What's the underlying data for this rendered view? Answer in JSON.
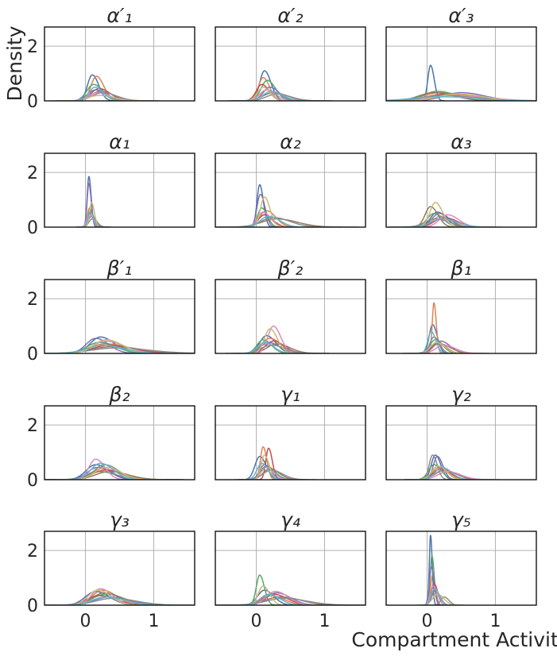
{
  "figure": {
    "ylabel": "Density",
    "xlabel": "Compartment Activity"
  },
  "colors": {
    "series": [
      "#4c72b0",
      "#dd8452",
      "#55a868",
      "#c44e52",
      "#8172b3",
      "#937860",
      "#da8bc3",
      "#8c8c8c",
      "#ccb974",
      "#64b5cd"
    ],
    "grid": "#b0b0b0",
    "frame": "#000000",
    "text": "#262626"
  },
  "chart_data": [
    {
      "type": "line",
      "title": "α′₁",
      "xlim": [
        -0.6,
        1.6
      ],
      "ylim": [
        0,
        2.7
      ],
      "xticks": [
        0,
        1
      ],
      "yticks": [
        0,
        2
      ],
      "series": [
        {
          "peak_x": 0.1,
          "peak_y": 0.95,
          "width": 0.07
        },
        {
          "peak_x": 0.16,
          "peak_y": 0.9,
          "width": 0.08
        },
        {
          "peak_x": 0.12,
          "peak_y": 0.6,
          "width": 0.1
        },
        {
          "peak_x": 0.2,
          "peak_y": 0.45,
          "width": 0.12
        },
        {
          "peak_x": 0.15,
          "peak_y": 0.4,
          "width": 0.12
        },
        {
          "peak_x": 0.22,
          "peak_y": 0.35,
          "width": 0.14
        },
        {
          "peak_x": 0.18,
          "peak_y": 0.3,
          "width": 0.13
        },
        {
          "peak_x": 0.25,
          "peak_y": 0.3,
          "width": 0.15
        },
        {
          "peak_x": 0.2,
          "peak_y": 0.2,
          "width": 0.16
        },
        {
          "peak_x": 0.14,
          "peak_y": 0.5,
          "width": 0.09
        }
      ]
    },
    {
      "type": "line",
      "title": "α′₂",
      "xlim": [
        -0.6,
        1.6
      ],
      "ylim": [
        0,
        2.7
      ],
      "xticks": [
        0,
        1
      ],
      "yticks": [
        0,
        2
      ],
      "series": [
        {
          "peak_x": 0.12,
          "peak_y": 1.1,
          "width": 0.07
        },
        {
          "peak_x": 0.1,
          "peak_y": 0.85,
          "width": 0.07
        },
        {
          "peak_x": 0.16,
          "peak_y": 0.75,
          "width": 0.09
        },
        {
          "peak_x": 0.08,
          "peak_y": 0.6,
          "width": 0.08
        },
        {
          "peak_x": 0.2,
          "peak_y": 0.5,
          "width": 0.1
        },
        {
          "peak_x": 0.25,
          "peak_y": 0.3,
          "width": 0.15
        },
        {
          "peak_x": 0.15,
          "peak_y": 0.4,
          "width": 0.1
        },
        {
          "peak_x": 0.3,
          "peak_y": 0.25,
          "width": 0.15
        },
        {
          "peak_x": 0.1,
          "peak_y": 0.5,
          "width": 0.08
        },
        {
          "peak_x": 0.22,
          "peak_y": 0.35,
          "width": 0.12
        }
      ]
    },
    {
      "type": "line",
      "title": "α′₃",
      "xlim": [
        -0.6,
        1.6
      ],
      "ylim": [
        0,
        2.7
      ],
      "xticks": [
        0,
        1
      ],
      "yticks": [
        0,
        2
      ],
      "series": [
        {
          "peak_x": 0.05,
          "peak_y": 1.3,
          "width": 0.04
        },
        {
          "peak_x": 0.2,
          "peak_y": 0.3,
          "width": 0.25
        },
        {
          "peak_x": 0.15,
          "peak_y": 0.35,
          "width": 0.2
        },
        {
          "peak_x": 0.3,
          "peak_y": 0.25,
          "width": 0.3
        },
        {
          "peak_x": 0.5,
          "peak_y": 0.3,
          "width": 0.25
        },
        {
          "peak_x": 0.1,
          "peak_y": 0.3,
          "width": 0.22
        },
        {
          "peak_x": 0.4,
          "peak_y": 0.2,
          "width": 0.35
        },
        {
          "peak_x": 0.25,
          "peak_y": 0.2,
          "width": 0.3
        },
        {
          "peak_x": 0.45,
          "peak_y": 0.25,
          "width": 0.28
        },
        {
          "peak_x": 0.2,
          "peak_y": 0.15,
          "width": 0.4
        }
      ]
    },
    {
      "type": "line",
      "title": "α₁",
      "xlim": [
        -0.6,
        1.6
      ],
      "ylim": [
        0,
        2.7
      ],
      "xticks": [
        0,
        1
      ],
      "yticks": [
        0,
        2
      ],
      "series": [
        {
          "peak_x": 0.05,
          "peak_y": 1.85,
          "width": 0.025
        },
        {
          "peak_x": 0.06,
          "peak_y": 0.7,
          "width": 0.03
        },
        {
          "peak_x": 0.07,
          "peak_y": 0.6,
          "width": 0.035
        },
        {
          "peak_x": 0.08,
          "peak_y": 0.5,
          "width": 0.04
        },
        {
          "peak_x": 0.05,
          "peak_y": 1.6,
          "width": 0.025
        },
        {
          "peak_x": 0.09,
          "peak_y": 0.4,
          "width": 0.05
        },
        {
          "peak_x": 0.06,
          "peak_y": 0.45,
          "width": 0.04
        },
        {
          "peak_x": 0.1,
          "peak_y": 0.3,
          "width": 0.05
        },
        {
          "peak_x": 0.09,
          "peak_y": 0.9,
          "width": 0.03
        },
        {
          "peak_x": 0.07,
          "peak_y": 0.55,
          "width": 0.035
        }
      ]
    },
    {
      "type": "line",
      "title": "α₂",
      "xlim": [
        -0.6,
        1.6
      ],
      "ylim": [
        0,
        2.7
      ],
      "xticks": [
        0,
        1
      ],
      "yticks": [
        0,
        2
      ],
      "series": [
        {
          "peak_x": 0.05,
          "peak_y": 1.55,
          "width": 0.04
        },
        {
          "peak_x": 0.15,
          "peak_y": 0.6,
          "width": 0.1
        },
        {
          "peak_x": 0.08,
          "peak_y": 0.7,
          "width": 0.06
        },
        {
          "peak_x": 0.12,
          "peak_y": 0.45,
          "width": 0.09
        },
        {
          "peak_x": 0.06,
          "peak_y": 1.2,
          "width": 0.05
        },
        {
          "peak_x": 0.3,
          "peak_y": 0.3,
          "width": 0.22
        },
        {
          "peak_x": 0.1,
          "peak_y": 0.55,
          "width": 0.08
        },
        {
          "peak_x": 0.25,
          "peak_y": 0.35,
          "width": 0.18
        },
        {
          "peak_x": 0.12,
          "peak_y": 1.1,
          "width": 0.06
        },
        {
          "peak_x": 0.18,
          "peak_y": 0.4,
          "width": 0.12
        }
      ]
    },
    {
      "type": "line",
      "title": "α₃",
      "xlim": [
        -0.6,
        1.6
      ],
      "ylim": [
        0,
        2.7
      ],
      "xticks": [
        0,
        1
      ],
      "yticks": [
        0,
        2
      ],
      "series": [
        {
          "peak_x": 0.15,
          "peak_y": 0.55,
          "width": 0.1
        },
        {
          "peak_x": 0.2,
          "peak_y": 0.4,
          "width": 0.12
        },
        {
          "peak_x": 0.1,
          "peak_y": 0.5,
          "width": 0.1
        },
        {
          "peak_x": 0.25,
          "peak_y": 0.35,
          "width": 0.14
        },
        {
          "peak_x": 0.18,
          "peak_y": 0.5,
          "width": 0.11
        },
        {
          "peak_x": 0.05,
          "peak_y": 0.75,
          "width": 0.08
        },
        {
          "peak_x": 0.3,
          "peak_y": 0.45,
          "width": 0.12
        },
        {
          "peak_x": 0.12,
          "peak_y": 0.3,
          "width": 0.15
        },
        {
          "peak_x": 0.12,
          "peak_y": 0.9,
          "width": 0.08
        },
        {
          "peak_x": 0.22,
          "peak_y": 0.3,
          "width": 0.16
        }
      ]
    },
    {
      "type": "line",
      "title": "β′₁",
      "xlim": [
        -0.6,
        1.6
      ],
      "ylim": [
        0,
        2.7
      ],
      "xticks": [
        0,
        1
      ],
      "yticks": [
        0,
        2
      ],
      "series": [
        {
          "peak_x": 0.22,
          "peak_y": 0.6,
          "width": 0.15
        },
        {
          "peak_x": 0.3,
          "peak_y": 0.35,
          "width": 0.25
        },
        {
          "peak_x": 0.2,
          "peak_y": 0.4,
          "width": 0.18
        },
        {
          "peak_x": 0.35,
          "peak_y": 0.3,
          "width": 0.25
        },
        {
          "peak_x": 0.15,
          "peak_y": 0.55,
          "width": 0.14
        },
        {
          "peak_x": 0.4,
          "peak_y": 0.25,
          "width": 0.3
        },
        {
          "peak_x": 0.3,
          "peak_y": 0.45,
          "width": 0.2
        },
        {
          "peak_x": 0.45,
          "peak_y": 0.2,
          "width": 0.35
        },
        {
          "peak_x": 0.3,
          "peak_y": 0.5,
          "width": 0.18
        },
        {
          "peak_x": 0.25,
          "peak_y": 0.3,
          "width": 0.22
        }
      ]
    },
    {
      "type": "line",
      "title": "β′₂",
      "xlim": [
        -0.6,
        1.6
      ],
      "ylim": [
        0,
        2.7
      ],
      "xticks": [
        0,
        1
      ],
      "yticks": [
        0,
        2
      ],
      "series": [
        {
          "peak_x": 0.15,
          "peak_y": 0.65,
          "width": 0.1
        },
        {
          "peak_x": 0.2,
          "peak_y": 0.55,
          "width": 0.12
        },
        {
          "peak_x": 0.1,
          "peak_y": 0.5,
          "width": 0.09
        },
        {
          "peak_x": 0.25,
          "peak_y": 0.45,
          "width": 0.12
        },
        {
          "peak_x": 0.18,
          "peak_y": 0.4,
          "width": 0.12
        },
        {
          "peak_x": 0.3,
          "peak_y": 0.35,
          "width": 0.14
        },
        {
          "peak_x": 0.25,
          "peak_y": 1.0,
          "width": 0.08
        },
        {
          "peak_x": 0.22,
          "peak_y": 0.3,
          "width": 0.15
        },
        {
          "peak_x": 0.2,
          "peak_y": 0.9,
          "width": 0.08
        },
        {
          "peak_x": 0.12,
          "peak_y": 0.4,
          "width": 0.1
        }
      ]
    },
    {
      "type": "line",
      "title": "β₁",
      "xlim": [
        -0.6,
        1.6
      ],
      "ylim": [
        0,
        2.7
      ],
      "xticks": [
        0,
        1
      ],
      "yticks": [
        0,
        2
      ],
      "series": [
        {
          "peak_x": 0.08,
          "peak_y": 1.05,
          "width": 0.05
        },
        {
          "peak_x": 0.1,
          "peak_y": 1.85,
          "width": 0.025
        },
        {
          "peak_x": 0.12,
          "peak_y": 0.5,
          "width": 0.08
        },
        {
          "peak_x": 0.15,
          "peak_y": 0.4,
          "width": 0.09
        },
        {
          "peak_x": 0.2,
          "peak_y": 0.45,
          "width": 0.1
        },
        {
          "peak_x": 0.18,
          "peak_y": 0.35,
          "width": 0.12
        },
        {
          "peak_x": 0.25,
          "peak_y": 0.3,
          "width": 0.12
        },
        {
          "peak_x": 0.1,
          "peak_y": 0.6,
          "width": 0.06
        },
        {
          "peak_x": 0.14,
          "peak_y": 0.4,
          "width": 0.09
        },
        {
          "peak_x": 0.06,
          "peak_y": 0.8,
          "width": 0.05
        }
      ]
    },
    {
      "type": "line",
      "title": "β₂",
      "xlim": [
        -0.6,
        1.6
      ],
      "ylim": [
        0,
        2.7
      ],
      "xticks": [
        0,
        1
      ],
      "yticks": [
        0,
        2
      ],
      "series": [
        {
          "peak_x": 0.15,
          "peak_y": 0.55,
          "width": 0.14
        },
        {
          "peak_x": 0.25,
          "peak_y": 0.4,
          "width": 0.18
        },
        {
          "peak_x": 0.2,
          "peak_y": 0.3,
          "width": 0.18
        },
        {
          "peak_x": 0.3,
          "peak_y": 0.35,
          "width": 0.2
        },
        {
          "peak_x": 0.18,
          "peak_y": 0.45,
          "width": 0.15
        },
        {
          "peak_x": 0.35,
          "peak_y": 0.3,
          "width": 0.2
        },
        {
          "peak_x": 0.15,
          "peak_y": 0.75,
          "width": 0.1
        },
        {
          "peak_x": 0.28,
          "peak_y": 0.55,
          "width": 0.15
        },
        {
          "peak_x": 0.3,
          "peak_y": 0.45,
          "width": 0.16
        },
        {
          "peak_x": 0.22,
          "peak_y": 0.6,
          "width": 0.14
        }
      ]
    },
    {
      "type": "line",
      "title": "γ₁",
      "xlim": [
        -0.6,
        1.6
      ],
      "ylim": [
        0,
        2.7
      ],
      "xticks": [
        0,
        1
      ],
      "yticks": [
        0,
        2
      ],
      "series": [
        {
          "peak_x": 0.05,
          "peak_y": 0.85,
          "width": 0.07
        },
        {
          "peak_x": 0.1,
          "peak_y": 1.2,
          "width": 0.04
        },
        {
          "peak_x": 0.15,
          "peak_y": 0.5,
          "width": 0.09
        },
        {
          "peak_x": 0.18,
          "peak_y": 1.15,
          "width": 0.04
        },
        {
          "peak_x": 0.12,
          "peak_y": 0.55,
          "width": 0.07
        },
        {
          "peak_x": 0.2,
          "peak_y": 0.4,
          "width": 0.1
        },
        {
          "peak_x": 0.15,
          "peak_y": 0.45,
          "width": 0.08
        },
        {
          "peak_x": 0.22,
          "peak_y": 0.35,
          "width": 0.12
        },
        {
          "peak_x": 0.12,
          "peak_y": 0.9,
          "width": 0.05
        },
        {
          "peak_x": 0.08,
          "peak_y": 0.6,
          "width": 0.07
        }
      ]
    },
    {
      "type": "line",
      "title": "γ₂",
      "xlim": [
        -0.6,
        1.6
      ],
      "ylim": [
        0,
        2.7
      ],
      "xticks": [
        0,
        1
      ],
      "yticks": [
        0,
        2
      ],
      "series": [
        {
          "peak_x": 0.12,
          "peak_y": 0.9,
          "width": 0.06
        },
        {
          "peak_x": 0.18,
          "peak_y": 0.45,
          "width": 0.1
        },
        {
          "peak_x": 0.1,
          "peak_y": 0.55,
          "width": 0.08
        },
        {
          "peak_x": 0.2,
          "peak_y": 0.4,
          "width": 0.11
        },
        {
          "peak_x": 0.15,
          "peak_y": 0.85,
          "width": 0.06
        },
        {
          "peak_x": 0.25,
          "peak_y": 0.35,
          "width": 0.13
        },
        {
          "peak_x": 0.3,
          "peak_y": 0.3,
          "width": 0.14
        },
        {
          "peak_x": 0.08,
          "peak_y": 0.9,
          "width": 0.05
        },
        {
          "peak_x": 0.16,
          "peak_y": 0.5,
          "width": 0.09
        },
        {
          "peak_x": 0.22,
          "peak_y": 0.45,
          "width": 0.1
        }
      ]
    },
    {
      "type": "line",
      "title": "γ₃",
      "xlim": [
        -0.6,
        1.6
      ],
      "ylim": [
        0,
        2.7
      ],
      "xticks": [
        0,
        1
      ],
      "yticks": [
        0,
        2
      ],
      "series": [
        {
          "peak_x": 0.15,
          "peak_y": 0.5,
          "width": 0.15
        },
        {
          "peak_x": 0.25,
          "peak_y": 0.55,
          "width": 0.15
        },
        {
          "peak_x": 0.3,
          "peak_y": 0.4,
          "width": 0.2
        },
        {
          "peak_x": 0.2,
          "peak_y": 0.35,
          "width": 0.18
        },
        {
          "peak_x": 0.35,
          "peak_y": 0.3,
          "width": 0.22
        },
        {
          "peak_x": 0.28,
          "peak_y": 0.45,
          "width": 0.18
        },
        {
          "peak_x": 0.22,
          "peak_y": 0.6,
          "width": 0.13
        },
        {
          "peak_x": 0.4,
          "peak_y": 0.25,
          "width": 0.25
        },
        {
          "peak_x": 0.18,
          "peak_y": 0.55,
          "width": 0.14
        },
        {
          "peak_x": 0.3,
          "peak_y": 0.3,
          "width": 0.2
        }
      ]
    },
    {
      "type": "line",
      "title": "γ₄",
      "xlim": [
        -0.6,
        1.6
      ],
      "ylim": [
        0,
        2.7
      ],
      "xticks": [
        0,
        1
      ],
      "yticks": [
        0,
        2
      ],
      "series": [
        {
          "peak_x": 0.12,
          "peak_y": 0.55,
          "width": 0.1
        },
        {
          "peak_x": 0.2,
          "peak_y": 0.35,
          "width": 0.15
        },
        {
          "peak_x": 0.05,
          "peak_y": 1.1,
          "width": 0.05
        },
        {
          "peak_x": 0.25,
          "peak_y": 0.4,
          "width": 0.15
        },
        {
          "peak_x": 0.3,
          "peak_y": 0.45,
          "width": 0.15
        },
        {
          "peak_x": 0.35,
          "peak_y": 0.3,
          "width": 0.22
        },
        {
          "peak_x": 0.28,
          "peak_y": 0.5,
          "width": 0.14
        },
        {
          "peak_x": 0.4,
          "peak_y": 0.25,
          "width": 0.25
        },
        {
          "peak_x": 0.1,
          "peak_y": 0.7,
          "width": 0.07
        },
        {
          "peak_x": 0.18,
          "peak_y": 0.4,
          "width": 0.12
        }
      ]
    },
    {
      "type": "line",
      "title": "γ₅",
      "xlim": [
        -0.6,
        1.6
      ],
      "ylim": [
        0,
        2.7
      ],
      "xticks": [
        0,
        1
      ],
      "yticks": [
        0,
        2
      ],
      "series": [
        {
          "peak_x": 0.05,
          "peak_y": 2.55,
          "width": 0.018
        },
        {
          "peak_x": 0.08,
          "peak_y": 1.1,
          "width": 0.03
        },
        {
          "peak_x": 0.07,
          "peak_y": 1.8,
          "width": 0.025
        },
        {
          "peak_x": 0.1,
          "peak_y": 0.8,
          "width": 0.04
        },
        {
          "peak_x": 0.06,
          "peak_y": 1.4,
          "width": 0.03
        },
        {
          "peak_x": 0.12,
          "peak_y": 0.55,
          "width": 0.05
        },
        {
          "peak_x": 0.09,
          "peak_y": 0.7,
          "width": 0.045
        },
        {
          "peak_x": 0.25,
          "peak_y": 0.3,
          "width": 0.05
        },
        {
          "peak_x": 0.15,
          "peak_y": 0.4,
          "width": 0.07
        },
        {
          "peak_x": 0.11,
          "peak_y": 0.6,
          "width": 0.05
        }
      ]
    }
  ]
}
